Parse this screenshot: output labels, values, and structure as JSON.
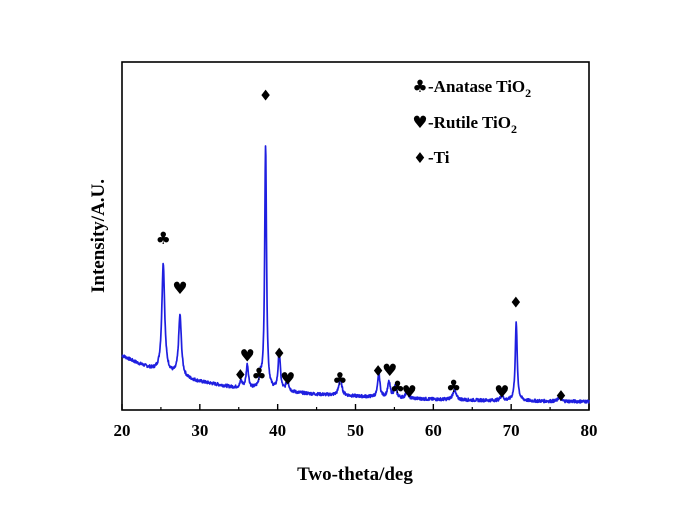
{
  "chart_data": {
    "type": "line",
    "title": "",
    "xlabel": "Two-theta/deg",
    "ylabel": "Intensity/A.U.",
    "xlim": [
      20,
      80
    ],
    "xticks": [
      20,
      30,
      40,
      50,
      60,
      70,
      80
    ],
    "yticks_shown": false,
    "grid": false,
    "legend_position": "top-right",
    "line_color": "#1f1fe0",
    "legend": [
      {
        "symbol": "club",
        "glyph": "♣",
        "text": "-Anatase TiO",
        "subscript": "2"
      },
      {
        "symbol": "heart",
        "glyph": "♥",
        "text": "-Rutile TiO",
        "subscript": "2"
      },
      {
        "symbol": "diamond",
        "glyph": "♦",
        "text": "-Ti",
        "subscript": ""
      }
    ],
    "background": {
      "x": [
        20,
        22,
        24,
        26,
        28,
        30,
        32,
        34,
        36,
        40,
        45,
        50,
        55,
        60,
        65,
        70,
        75,
        80
      ],
      "y": [
        25.0,
        21.5,
        18.5,
        16.5,
        14.5,
        13.0,
        11.8,
        10.5,
        9.5,
        8.5,
        7.2,
        6.3,
        5.5,
        4.9,
        4.5,
        4.2,
        4.0,
        3.9
      ]
    },
    "peaks": [
      {
        "x": 25.3,
        "height": 50.0,
        "width": 0.22
      },
      {
        "x": 27.45,
        "height": 28.0,
        "width": 0.22
      },
      {
        "x": 35.3,
        "height": 3.0,
        "width": 0.18
      },
      {
        "x": 36.1,
        "height": 11.0,
        "width": 0.18
      },
      {
        "x": 37.8,
        "height": 5.0,
        "width": 0.2
      },
      {
        "x": 38.45,
        "height": 113.0,
        "width": 0.14
      },
      {
        "x": 40.2,
        "height": 18.0,
        "width": 0.17
      },
      {
        "x": 41.25,
        "height": 6.0,
        "width": 0.18
      },
      {
        "x": 48.05,
        "height": 8.0,
        "width": 0.22
      },
      {
        "x": 53.0,
        "height": 11.0,
        "width": 0.17
      },
      {
        "x": 54.3,
        "height": 7.0,
        "width": 0.2
      },
      {
        "x": 55.1,
        "height": 5.0,
        "width": 0.2
      },
      {
        "x": 56.6,
        "height": 3.0,
        "width": 0.2
      },
      {
        "x": 62.7,
        "height": 4.5,
        "width": 0.25
      },
      {
        "x": 68.8,
        "height": 2.5,
        "width": 0.2
      },
      {
        "x": 70.65,
        "height": 36.0,
        "width": 0.15
      },
      {
        "x": 76.2,
        "height": 2.0,
        "width": 0.2
      }
    ],
    "markers": [
      {
        "symbol": "club",
        "x": 25.3,
        "y": 79
      },
      {
        "symbol": "heart",
        "x": 27.45,
        "y": 56
      },
      {
        "symbol": "diamond",
        "x": 35.2,
        "y": 16.5
      },
      {
        "symbol": "heart",
        "x": 36.1,
        "y": 25
      },
      {
        "symbol": "club",
        "x": 37.6,
        "y": 16.5
      },
      {
        "symbol": "diamond",
        "x": 38.45,
        "y": 145
      },
      {
        "symbol": "diamond",
        "x": 40.2,
        "y": 26.5
      },
      {
        "symbol": "heart",
        "x": 41.3,
        "y": 14.5
      },
      {
        "symbol": "club",
        "x": 48.0,
        "y": 14.5
      },
      {
        "symbol": "diamond",
        "x": 52.9,
        "y": 18.5
      },
      {
        "symbol": "heart",
        "x": 54.4,
        "y": 18.5
      },
      {
        "symbol": "club",
        "x": 55.4,
        "y": 10.5
      },
      {
        "symbol": "heart",
        "x": 56.9,
        "y": 8.5
      },
      {
        "symbol": "club",
        "x": 62.6,
        "y": 11.0
      },
      {
        "symbol": "heart",
        "x": 68.8,
        "y": 8.5
      },
      {
        "symbol": "diamond",
        "x": 70.6,
        "y": 50.0
      },
      {
        "symbol": "diamond",
        "x": 76.4,
        "y": 7.0
      }
    ]
  }
}
